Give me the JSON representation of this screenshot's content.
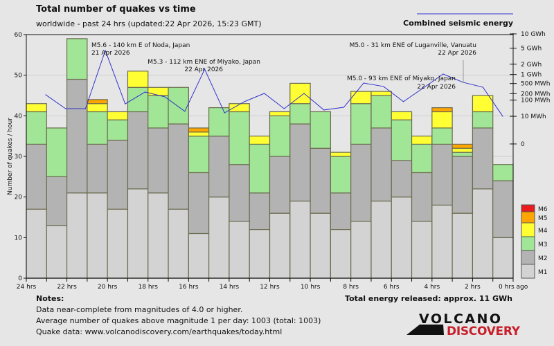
{
  "chart_data": {
    "type": "bar",
    "title": "Total number of quakes vs time",
    "subtitle": "worldwide - past 24 hrs (updated:22 Apr 2026, 15:23 GMT)",
    "ylabel": "Number of quakes / hour",
    "ylim": [
      0,
      60
    ],
    "yticks": [
      "0",
      "10",
      "20",
      "30",
      "40",
      "50",
      "60"
    ],
    "xticks": [
      "24 hrs",
      "22 hrs",
      "20 hrs",
      "18 hrs",
      "16 hrs",
      "14 hrs",
      "12 hrs",
      "10 hrs",
      "8 hrs",
      "6 hrs",
      "4 hrs",
      "2 hrs",
      "0 hrs ago"
    ],
    "stacked": true,
    "series": [
      {
        "name": "M1",
        "color": "#d3d3d3",
        "values": [
          17,
          13,
          21,
          21,
          17,
          22,
          21,
          17,
          11,
          20,
          14,
          12,
          16,
          19,
          16,
          12,
          14,
          19,
          20,
          14,
          18,
          16,
          22,
          10
        ]
      },
      {
        "name": "M2",
        "color": "#b3b3b3",
        "values": [
          16,
          12,
          28,
          12,
          17,
          19,
          16,
          21,
          15,
          15,
          14,
          9,
          14,
          19,
          16,
          9,
          19,
          18,
          9,
          12,
          15,
          14,
          15,
          14
        ]
      },
      {
        "name": "M3",
        "color": "#a0e696",
        "values": [
          8,
          12,
          10,
          8,
          5,
          6,
          8,
          9,
          9,
          7,
          13,
          12,
          10,
          5,
          9,
          9,
          10,
          8,
          10,
          7,
          4,
          1,
          4,
          4
        ]
      },
      {
        "name": "M4",
        "color": "#ffff33",
        "values": [
          2,
          0,
          0,
          2,
          2,
          4,
          2,
          0,
          1,
          0,
          2,
          2,
          1,
          5,
          0,
          1,
          3,
          1,
          2,
          2,
          4,
          1,
          4,
          0
        ]
      },
      {
        "name": "M5",
        "color": "#ffa500",
        "values": [
          0,
          0,
          0,
          1,
          0,
          0,
          0,
          0,
          1,
          0,
          0,
          0,
          0,
          0,
          0,
          0,
          0,
          0,
          0,
          0,
          1,
          1,
          0,
          0
        ]
      },
      {
        "name": "M6",
        "color": "#e81c1c",
        "values": [
          0,
          0,
          0,
          0,
          0,
          0,
          0,
          0,
          0,
          0,
          0,
          0,
          0,
          0,
          0,
          0,
          0,
          0,
          0,
          0,
          0,
          0,
          0,
          0
        ]
      }
    ],
    "energy": {
      "label": "Combined seismic energy",
      "unit": "MWh",
      "color": "#3333cc",
      "values_mwh": [
        178,
        34,
        34,
        4410,
        64,
        234,
        143,
        23,
        1440,
        18,
        84,
        204,
        34,
        204,
        28,
        41,
        519,
        389,
        84,
        341,
        1034,
        551,
        364,
        10
      ],
      "ticks": [
        {
          "label": "10 GWh",
          "mwh": 10000
        },
        {
          "label": "5 GWh",
          "mwh": 5000
        },
        {
          "label": "2 GWh",
          "mwh": 2000
        },
        {
          "label": "1 GWh",
          "mwh": 1000
        },
        {
          "label": "500 MWh",
          "mwh": 500
        },
        {
          "label": "200 MWh",
          "mwh": 200
        },
        {
          "label": "100 MWh",
          "mwh": 100
        },
        {
          "label": "10 MWh",
          "mwh": 10
        },
        {
          "label": "0",
          "mwh": 0
        }
      ]
    },
    "annotations": [
      {
        "line1": "M5.6 - 140 km E of Noda, Japan",
        "line2": "21 Apr 2026"
      },
      {
        "line1": "M5.3 - 112 km ENE of Miyako, Japan",
        "line2": "22 Apr 2026"
      },
      {
        "line1": "M5.0 - 31 km ENE of Luganville, Vanuatu",
        "line2": "22 Apr 2026"
      },
      {
        "line1": "M5.0 - 93 km ENE of Miyako, Japan",
        "line2": "22 Apr 2026"
      }
    ],
    "legend_position": "bottom-right"
  },
  "notes": {
    "heading": "Notes:",
    "line1": "Data near-complete from magnitudes of 4.0 or higher.",
    "line2": "Average number of quakes above magnitude 1 per day: 1003 (total: 1003)",
    "line3": "Quake data: www.volcanodiscovery.com/earthquakes/today.html"
  },
  "total_energy": "Total energy released: approx. 11 GWh",
  "logo": {
    "top": "VOLCANO",
    "bottom": "DISCOVERY"
  }
}
